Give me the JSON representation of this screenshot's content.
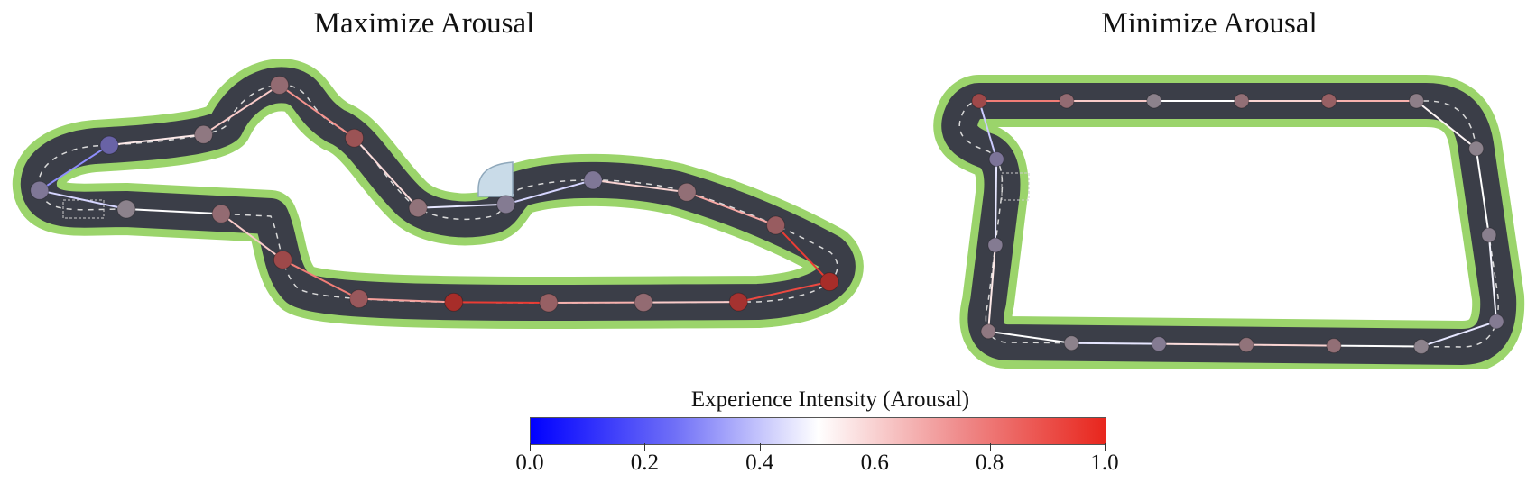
{
  "titles": {
    "left": "Maximize Arousal",
    "right": "Minimize Arousal"
  },
  "colorbar": {
    "label": "Experience Intensity (Arousal)",
    "ticks": [
      "0.0",
      "0.2",
      "0.4",
      "0.6",
      "0.8",
      "1.0"
    ],
    "range": [
      0.0,
      1.0
    ],
    "colors": {
      "low": "#0000ff",
      "mid": "#ffffff",
      "high": "#e8261d"
    }
  },
  "track_colors": {
    "grass": "#9bd46b",
    "asphalt": "#3b3e48",
    "kerb": "#b94a3f"
  },
  "trajectories": {
    "left": [
      0.5,
      0.62,
      0.8,
      0.72,
      0.95,
      0.68,
      0.62,
      0.92,
      0.95,
      0.7,
      0.6,
      0.42,
      0.45,
      0.58,
      0.75,
      0.62,
      0.55,
      0.28,
      0.42
    ],
    "right": [
      0.8,
      0.62,
      0.5,
      0.6,
      0.68,
      0.52,
      0.5,
      0.48,
      0.45,
      0.5,
      0.6,
      0.58,
      0.45,
      0.5,
      0.55,
      0.45,
      0.4
    ]
  }
}
